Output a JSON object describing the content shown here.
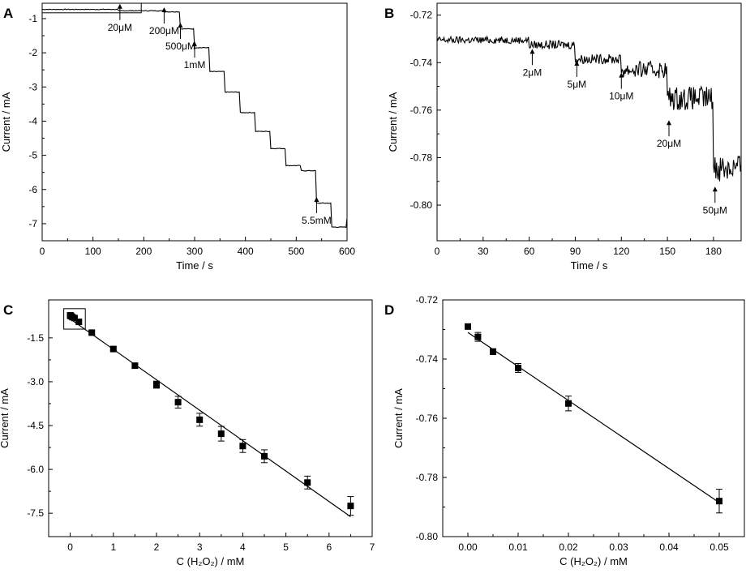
{
  "chart_data": [
    {
      "panel": "A",
      "type": "line",
      "title": "",
      "xlabel": "Time / s",
      "ylabel": "Current / mA",
      "xlim": [
        0,
        600
      ],
      "ylim": [
        -7.5,
        -0.55
      ],
      "xticks": [
        0,
        100,
        200,
        300,
        400,
        500,
        600
      ],
      "yticks": [
        -1,
        -2,
        -3,
        -4,
        -5,
        -6,
        -7
      ],
      "zoom_box": {
        "x": [
          0,
          195
        ],
        "y": [
          -0.83,
          -0.55
        ]
      },
      "steps": [
        {
          "t": 0,
          "v": -0.73
        },
        {
          "t": 150,
          "v": -0.77
        },
        {
          "t": 240,
          "v": -0.8
        },
        {
          "t": 272,
          "v": -1.3
        },
        {
          "t": 300,
          "v": -1.85
        },
        {
          "t": 330,
          "v": -2.55
        },
        {
          "t": 360,
          "v": -3.15
        },
        {
          "t": 390,
          "v": -3.75
        },
        {
          "t": 420,
          "v": -4.3
        },
        {
          "t": 450,
          "v": -4.8
        },
        {
          "t": 480,
          "v": -5.3
        },
        {
          "t": 510,
          "v": -5.45
        },
        {
          "t": 540,
          "v": -6.4
        },
        {
          "t": 570,
          "v": -7.1
        },
        {
          "t": 600,
          "v": -6.85
        }
      ],
      "annotations": [
        {
          "text": "20μM",
          "x": 153,
          "y": -0.9
        },
        {
          "text": "200μM",
          "x": 240,
          "y": -1.0
        },
        {
          "text": "500μM",
          "x": 272,
          "y": -1.45
        },
        {
          "text": "1mM",
          "x": 300,
          "y": -2.0
        },
        {
          "text": "5.5mM",
          "x": 540,
          "y": -6.55
        }
      ]
    },
    {
      "panel": "B",
      "type": "line",
      "title": "",
      "xlabel": "Time / s",
      "ylabel": "Current / mA",
      "xlim": [
        0,
        198
      ],
      "ylim": [
        -0.815,
        -0.715
      ],
      "xticks": [
        0,
        30,
        60,
        90,
        120,
        150,
        180
      ],
      "yticks": [
        -0.72,
        -0.74,
        -0.76,
        -0.78,
        -0.8
      ],
      "steps": [
        {
          "t": 0,
          "v": -0.7305,
          "noise": 0.0015
        },
        {
          "t": 60,
          "v": -0.7325,
          "noise": 0.0018
        },
        {
          "t": 90,
          "v": -0.7385,
          "noise": 0.002
        },
        {
          "t": 120,
          "v": -0.743,
          "noise": 0.0035
        },
        {
          "t": 150,
          "v": -0.755,
          "noise": 0.005
        },
        {
          "t": 180,
          "v": -0.784,
          "noise": 0.006
        }
      ],
      "annotations": [
        {
          "text": "2μM",
          "x": 62,
          "y": -0.739
        },
        {
          "text": "5μM",
          "x": 91,
          "y": -0.744
        },
        {
          "text": "10μM",
          "x": 120,
          "y": -0.749
        },
        {
          "text": "20μM",
          "x": 151,
          "y": -0.769
        },
        {
          "text": "50μM",
          "x": 181,
          "y": -0.797
        }
      ]
    },
    {
      "panel": "C",
      "type": "scatter",
      "title": "",
      "xlabel": "C (H₂O₂) / mM",
      "ylabel": "Current / mA",
      "xlim": [
        -0.5,
        7
      ],
      "ylim": [
        -8.3,
        -0.2
      ],
      "xticks": [
        0,
        1,
        2,
        3,
        4,
        5,
        6,
        7
      ],
      "yticks": [
        -1.5,
        -3.0,
        -4.5,
        -6.0,
        -7.5
      ],
      "zoom_box": {
        "x": [
          -0.15,
          0.35
        ],
        "y": [
          -1.2,
          -0.5
        ]
      },
      "x": [
        0,
        0.002,
        0.005,
        0.01,
        0.02,
        0.05,
        0.1,
        0.2,
        0.5,
        1,
        1.5,
        2,
        2.5,
        3,
        3.5,
        4,
        4.5,
        5.5,
        6.5
      ],
      "y": [
        -0.73,
        -0.733,
        -0.738,
        -0.743,
        -0.755,
        -0.79,
        -0.82,
        -0.95,
        -1.32,
        -1.88,
        -2.45,
        -3.1,
        -3.7,
        -4.3,
        -4.78,
        -5.2,
        -5.55,
        -6.45,
        -7.25
      ],
      "err": [
        0.01,
        0.01,
        0.01,
        0.01,
        0.01,
        0.02,
        0.03,
        0.04,
        0.06,
        0.06,
        0.08,
        0.12,
        0.2,
        0.22,
        0.25,
        0.22,
        0.22,
        0.22,
        0.32
      ],
      "fit": {
        "x": [
          0,
          6.5
        ],
        "y": [
          -0.85,
          -7.62
        ]
      }
    },
    {
      "panel": "D",
      "type": "scatter",
      "title": "",
      "xlabel": "C (H₂O₂) / mM",
      "ylabel": "Current / mA",
      "xlim": [
        -0.005,
        0.055
      ],
      "ylim": [
        -0.8,
        -0.72
      ],
      "xticks": [
        0.0,
        0.01,
        0.02,
        0.03,
        0.04,
        0.05
      ],
      "xticklabels": [
        "0.00",
        "0.01",
        "0.02",
        "0.03",
        "0.04",
        "0.05"
      ],
      "yticks": [
        -0.72,
        -0.74,
        -0.76,
        -0.78,
        -0.8
      ],
      "x": [
        0,
        0.002,
        0.005,
        0.01,
        0.02,
        0.05
      ],
      "y": [
        -0.729,
        -0.7325,
        -0.7375,
        -0.743,
        -0.755,
        -0.788
      ],
      "err": [
        0.0005,
        0.0015,
        0.001,
        0.0015,
        0.0025,
        0.004
      ],
      "fit": {
        "x": [
          0,
          0.05
        ],
        "y": [
          -0.731,
          -0.7885
        ]
      }
    }
  ]
}
